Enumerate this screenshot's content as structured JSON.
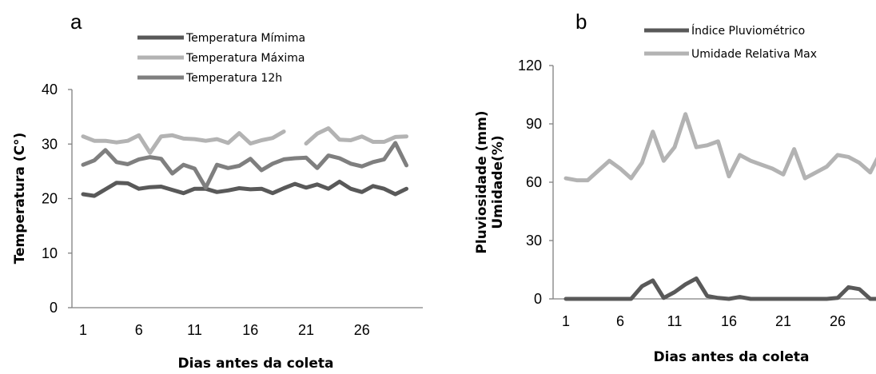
{
  "chart_data": [
    {
      "type": "line",
      "panel_label": "a",
      "xlabel": "Dias antes da coleta",
      "ylabel": "Temperatura (C°)",
      "xticks": [
        1,
        6,
        11,
        16,
        21,
        26
      ],
      "yticks": [
        0,
        10,
        20,
        30,
        40
      ],
      "ylim": [
        0,
        40
      ],
      "xlim": [
        1,
        30
      ],
      "x": [
        1,
        2,
        3,
        4,
        5,
        6,
        7,
        8,
        9,
        10,
        11,
        12,
        13,
        14,
        15,
        16,
        17,
        18,
        19,
        20,
        21,
        22,
        23,
        24,
        25,
        26,
        27,
        28,
        29,
        30
      ],
      "series": [
        {
          "name": "Temperatura Mímima",
          "color": "#595959",
          "values": [
            20.8,
            20.5,
            21.7,
            22.9,
            22.8,
            21.8,
            22.1,
            22.2,
            21.6,
            21.0,
            21.8,
            21.8,
            21.2,
            21.5,
            21.9,
            21.7,
            21.8,
            21.0,
            21.9,
            22.7,
            22.0,
            22.6,
            21.8,
            23.1,
            21.8,
            21.2,
            22.3,
            21.8,
            20.8,
            21.8
          ]
        },
        {
          "name": "Temperatura Máxima",
          "color": "#b3b3b3",
          "values": [
            31.4,
            30.6,
            30.6,
            30.3,
            30.6,
            31.6,
            28.4,
            31.4,
            31.6,
            31.0,
            30.9,
            30.6,
            30.9,
            30.2,
            32.0,
            30.1,
            30.7,
            31.1,
            32.3,
            null,
            30.1,
            31.9,
            32.9,
            30.8,
            30.7,
            31.4,
            30.4,
            30.4,
            31.3,
            31.4
          ]
        },
        {
          "name": "Temperatura 12h",
          "color": "#7f7f7f",
          "values": [
            26.2,
            27.0,
            28.9,
            26.7,
            26.3,
            27.2,
            27.6,
            27.3,
            24.6,
            26.2,
            25.5,
            22.0,
            26.2,
            25.6,
            26.0,
            27.3,
            25.2,
            26.4,
            27.2,
            27.4,
            27.5,
            25.6,
            27.9,
            27.4,
            26.4,
            25.9,
            26.7,
            27.2,
            30.2,
            26.1
          ]
        }
      ],
      "legend": "top"
    },
    {
      "type": "line",
      "panel_label": "b",
      "xlabel": "Dias antes da coleta",
      "ylabel_line1": "Pluviosidade (mm)",
      "ylabel_line2": "Umidade(%)",
      "xticks": [
        1,
        6,
        11,
        16,
        21,
        26
      ],
      "yticks": [
        0,
        30,
        60,
        90,
        120
      ],
      "ylim": [
        0,
        120
      ],
      "xlim": [
        1,
        30
      ],
      "x": [
        1,
        2,
        3,
        4,
        5,
        6,
        7,
        8,
        9,
        10,
        11,
        12,
        13,
        14,
        15,
        16,
        17,
        18,
        19,
        20,
        21,
        22,
        23,
        24,
        25,
        26,
        27,
        28,
        29,
        30
      ],
      "series": [
        {
          "name": "Índice Pluviométrico",
          "color": "#595959",
          "values": [
            0,
            0,
            0,
            0,
            0,
            0,
            0,
            6.5,
            9.5,
            0.5,
            3.5,
            7.5,
            10.5,
            1.5,
            0.5,
            0,
            1,
            0,
            0,
            0,
            0,
            0,
            0,
            0,
            0,
            0.5,
            6,
            5,
            0,
            0
          ]
        },
        {
          "name": "Umidade Relativa Max",
          "color": "#b3b3b3",
          "values": [
            62,
            61,
            61,
            66,
            71,
            67,
            62,
            70,
            86,
            71,
            78,
            95,
            78,
            79,
            81,
            63,
            74,
            71,
            69,
            67,
            64,
            77,
            62,
            65,
            68,
            74,
            73,
            70,
            65,
            76
          ]
        }
      ],
      "legend": "top"
    }
  ]
}
